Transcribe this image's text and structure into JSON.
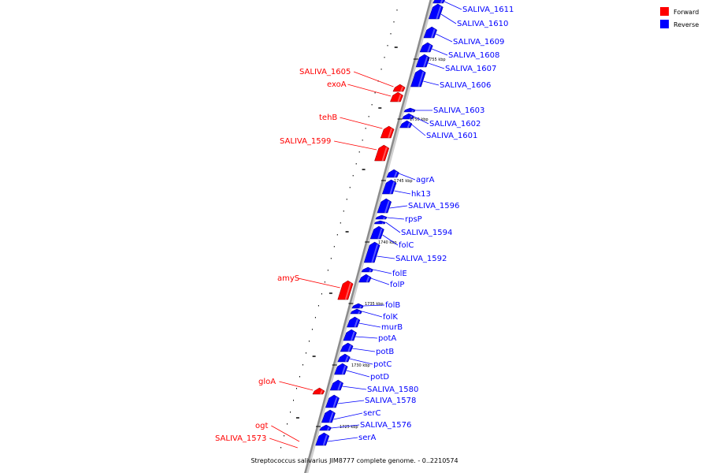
{
  "colors": {
    "forward": "#ff0000",
    "reverse": "#0000ff",
    "backbone": "#8c8c8c"
  },
  "legend": {
    "forward_label": "Forward",
    "reverse_label": "Reverse"
  },
  "caption": "Streptococcus salivarius JIM8777 complete genome. - 0..2210574",
  "ticks": [
    {
      "label": "1755 kbp"
    },
    {
      "label": "1750 kbp"
    },
    {
      "label": "1745 kbp"
    },
    {
      "label": "1740 kbp"
    },
    {
      "label": "1735 kbp"
    },
    {
      "label": "1730 kbp"
    },
    {
      "label": "1725 kbp"
    }
  ],
  "reverse_genes": [
    {
      "name": "SALIVA_1611"
    },
    {
      "name": "SALIVA_1610"
    },
    {
      "name": "SALIVA_1609"
    },
    {
      "name": "SALIVA_1608"
    },
    {
      "name": "SALIVA_1607"
    },
    {
      "name": "SALIVA_1606"
    },
    {
      "name": "SALIVA_1603"
    },
    {
      "name": "SALIVA_1602"
    },
    {
      "name": "SALIVA_1601"
    },
    {
      "name": "agrA"
    },
    {
      "name": "hk13"
    },
    {
      "name": "SALIVA_1596"
    },
    {
      "name": "rpsP"
    },
    {
      "name": "SALIVA_1594"
    },
    {
      "name": "folC"
    },
    {
      "name": "SALIVA_1592"
    },
    {
      "name": "folE"
    },
    {
      "name": "folP"
    },
    {
      "name": "folB"
    },
    {
      "name": "folK"
    },
    {
      "name": "murB"
    },
    {
      "name": "potA"
    },
    {
      "name": "potB"
    },
    {
      "name": "potC"
    },
    {
      "name": "potD"
    },
    {
      "name": "SALIVA_1580"
    },
    {
      "name": "SALIVA_1578"
    },
    {
      "name": "serC"
    },
    {
      "name": "SALIVA_1576"
    },
    {
      "name": "serA"
    }
  ],
  "forward_genes": [
    {
      "name": "SALIVA_1605"
    },
    {
      "name": "exoA"
    },
    {
      "name": "tehB"
    },
    {
      "name": "SALIVA_1599"
    },
    {
      "name": "amyS"
    },
    {
      "name": "gloA"
    },
    {
      "name": "ogt"
    },
    {
      "name": "SALIVA_1573"
    }
  ]
}
